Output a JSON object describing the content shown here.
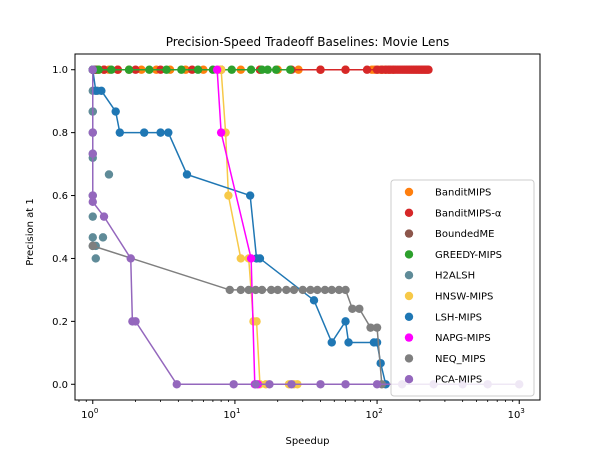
{
  "chart_data": {
    "type": "scatter",
    "title": "Precision-Speed Tradeoff Baselines: Movie Lens",
    "xlabel": "Speedup",
    "ylabel": "Precision at 1",
    "xscale": "log",
    "xlim": [
      0.75,
      1400
    ],
    "ylim": [
      -0.05,
      1.05
    ],
    "x_ticks": [
      {
        "value": 1,
        "base": "10",
        "exp": "0"
      },
      {
        "value": 10,
        "base": "10",
        "exp": "1"
      },
      {
        "value": 100,
        "base": "10",
        "exp": "2"
      },
      {
        "value": 1000,
        "base": "10",
        "exp": "3"
      }
    ],
    "y_ticks": [
      "0.0",
      "0.2",
      "0.4",
      "0.6",
      "0.8",
      "1.0"
    ],
    "y_tick_values": [
      0.0,
      0.2,
      0.4,
      0.6,
      0.8,
      1.0
    ],
    "grid": false,
    "legend_position": "lower-right",
    "series": [
      {
        "name": "BanditMIPS",
        "color": "#ff7f0e",
        "line": true,
        "x": [
          1.0,
          1.02,
          1.05,
          1.1,
          1.2,
          1.3,
          1.5,
          1.8,
          2.2,
          2.8,
          3.5,
          4.5,
          6.0,
          8.0,
          11.0,
          15.0,
          20.0,
          28.0,
          40.0,
          60.0,
          92.0,
          96.0,
          100.0,
          105.0,
          110.0,
          115.0,
          122.0,
          130.0
        ],
        "y": [
          1.0,
          1.0,
          1.0,
          1.0,
          1.0,
          1.0,
          1.0,
          1.0,
          1.0,
          1.0,
          1.0,
          1.0,
          1.0,
          1.0,
          1.0,
          1.0,
          1.0,
          1.0,
          1.0,
          1.0,
          1.0,
          1.0,
          1.0,
          1.0,
          1.0,
          1.0,
          1.0,
          1.0
        ]
      },
      {
        "name": "BanditMIPS-α",
        "color": "#d62728",
        "line": true,
        "x": [
          1.0,
          1.05,
          1.2,
          1.5,
          2.0,
          3.0,
          5.0,
          8.0,
          15.0,
          25.0,
          40.0,
          60.0,
          85.0,
          100.0,
          108.0,
          115.0,
          120.0,
          125.0,
          130.0,
          135.0,
          140.0,
          145.0,
          150.0,
          155.0,
          160.0,
          165.0,
          170.0,
          175.0,
          180.0,
          185.0,
          190.0,
          195.0,
          200.0,
          205.0,
          210.0,
          215.0,
          220.0,
          225.0,
          230.0
        ],
        "y": [
          1.0,
          1.0,
          1.0,
          1.0,
          1.0,
          1.0,
          1.0,
          1.0,
          1.0,
          1.0,
          1.0,
          1.0,
          1.0,
          1.0,
          1.0,
          1.0,
          1.0,
          1.0,
          1.0,
          1.0,
          1.0,
          1.0,
          1.0,
          1.0,
          1.0,
          1.0,
          1.0,
          1.0,
          1.0,
          1.0,
          1.0,
          1.0,
          1.0,
          1.0,
          1.0,
          1.0,
          1.0,
          1.0,
          1.0
        ]
      },
      {
        "name": "BoundedME",
        "color": "#8c564b",
        "line": true,
        "x": [
          1.0,
          1.03,
          1.06
        ],
        "y": [
          1.0,
          1.0,
          1.0
        ]
      },
      {
        "name": "GREEDY-MIPS",
        "color": "#2ca02c",
        "line": true,
        "x": [
          1.0,
          1.1,
          1.35,
          1.8,
          2.5,
          3.3,
          4.2,
          5.5,
          7.0,
          9.5,
          13.0,
          15.5,
          17.0,
          19.5,
          24.5
        ],
        "y": [
          1.0,
          1.0,
          1.0,
          1.0,
          1.0,
          1.0,
          1.0,
          1.0,
          1.0,
          1.0,
          1.0,
          1.0,
          1.0,
          1.0,
          1.0
        ]
      },
      {
        "name": "H2ALSH",
        "color": "#5f8b98",
        "line": false,
        "x": [
          1.0,
          1.0,
          1.0,
          1.0,
          1.0,
          1.0,
          1.0,
          1.0,
          1.0,
          1.0,
          1.0,
          1.05,
          1.08,
          1.18,
          1.3,
          1.05
        ],
        "y": [
          1.0,
          0.933,
          0.867,
          0.733,
          0.6,
          0.533,
          0.467,
          0.44,
          0.867,
          0.8,
          0.72,
          0.4,
          0.933,
          0.467,
          0.667,
          0.44
        ]
      },
      {
        "name": "HNSW-MIPS",
        "color": "#f7c948",
        "line": true,
        "x": [
          7.6,
          8.0,
          8.6,
          9.0,
          11.0,
          12.5,
          13.5,
          14.2,
          15.0,
          16.5,
          24.0,
          26.0,
          27.5
        ],
        "y": [
          1.0,
          1.0,
          0.8,
          0.6,
          0.4,
          0.4,
          0.2,
          0.2,
          0.0,
          0.0,
          0.0,
          0.0,
          0.0
        ]
      },
      {
        "name": "LSH-MIPS",
        "color": "#1f77b4",
        "line": true,
        "x": [
          1.0,
          1.05,
          1.15,
          1.45,
          1.55,
          2.3,
          3.0,
          3.4,
          4.6,
          12.8,
          14.2,
          15.0,
          36.0,
          48.0,
          60.0,
          63.0,
          95.0,
          100.0,
          106.0,
          115.0
        ],
        "y": [
          1.0,
          0.933,
          0.933,
          0.867,
          0.8,
          0.8,
          0.8,
          0.8,
          0.667,
          0.6,
          0.4,
          0.4,
          0.267,
          0.133,
          0.2,
          0.133,
          0.133,
          0.133,
          0.067,
          0.0
        ]
      },
      {
        "name": "NAPG-MIPS",
        "color": "#ff00ff",
        "line": true,
        "x": [
          7.5,
          8.0,
          13.0,
          13.8,
          14.5
        ],
        "y": [
          1.0,
          0.8,
          0.4,
          0.0,
          0.0
        ]
      },
      {
        "name": "NEQ_MIPS",
        "color": "#7f7f7f",
        "line": true,
        "x": [
          1.0,
          9.2,
          11.0,
          12.5,
          14.0,
          15.5,
          18.0,
          20.0,
          23.0,
          26.0,
          30.0,
          34.0,
          38.0,
          43.0,
          48.0,
          54.0,
          60.0,
          67.0,
          75.0,
          90.0,
          100.0,
          108.0
        ],
        "y": [
          0.44,
          0.3,
          0.3,
          0.3,
          0.3,
          0.3,
          0.3,
          0.3,
          0.3,
          0.3,
          0.3,
          0.3,
          0.3,
          0.3,
          0.3,
          0.3,
          0.3,
          0.24,
          0.24,
          0.18,
          0.18,
          0.0
        ]
      },
      {
        "name": "PCA-MIPS",
        "color": "#9467bd",
        "line": true,
        "x": [
          1.0,
          1.0,
          1.0,
          1.0,
          1.0,
          1.2,
          1.85,
          1.9,
          2.0,
          3.9,
          9.8,
          14.0,
          17.5,
          25.0,
          40.0,
          60.0,
          100.0,
          150.0,
          250.0,
          400.0,
          600.0,
          1000.0
        ],
        "y": [
          1.0,
          0.8,
          0.733,
          0.6,
          0.58,
          0.533,
          0.4,
          0.2,
          0.2,
          0.0,
          0.0,
          0.0,
          0.0,
          0.0,
          0.0,
          0.0,
          0.0,
          0.0,
          0.0,
          0.0,
          0.0,
          0.0
        ]
      }
    ]
  }
}
